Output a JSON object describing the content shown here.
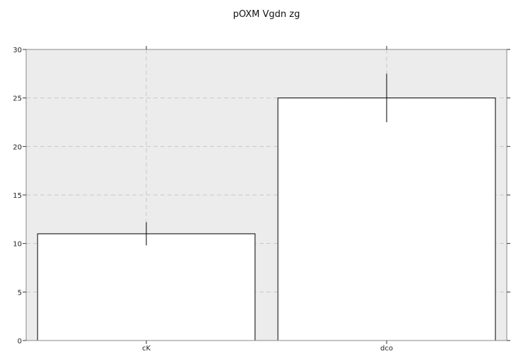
{
  "chart_data": {
    "type": "bar",
    "title": "pOXM Vgdn zg",
    "categories": [
      "cK",
      "dco"
    ],
    "values": [
      11,
      25
    ],
    "error": [
      1.2,
      2.5
    ],
    "ylim": [
      0,
      30
    ],
    "yticks": [
      0,
      5,
      10,
      15,
      20,
      25,
      30
    ],
    "xlabel": "",
    "ylabel": "",
    "grid": true,
    "colors": {
      "plot_background": "#ececec",
      "bar_fill": "#ffffff",
      "bar_edge": "#000000",
      "grid": "#c8c8c8",
      "axis": "#888888"
    }
  }
}
